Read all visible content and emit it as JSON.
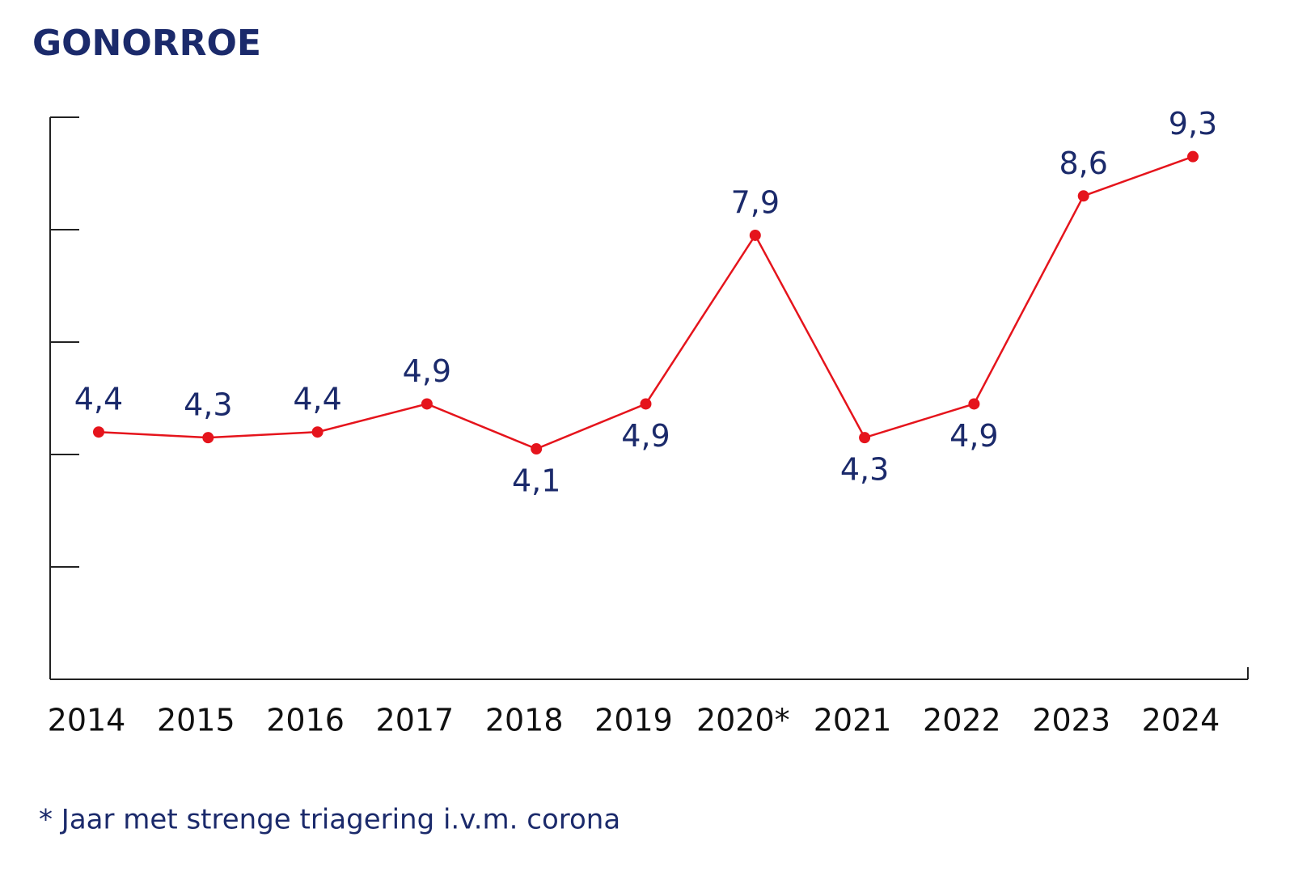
{
  "chart_data": {
    "type": "line",
    "title": "GONORROE",
    "categories": [
      "2014",
      "2015",
      "2016",
      "2017",
      "2018",
      "2019",
      "2020*",
      "2021",
      "2022",
      "2023",
      "2024"
    ],
    "series": [
      {
        "color": "#e5141c",
        "values": [
          4.4,
          4.3,
          4.4,
          4.9,
          4.1,
          4.9,
          7.9,
          4.3,
          4.9,
          8.6,
          9.3
        ],
        "value_labels": [
          "4,4",
          "4,3",
          "4,4",
          "4,9",
          "4,1",
          "4,9",
          "7,9",
          "4,3",
          "4,9",
          "8,6",
          "9,3"
        ]
      }
    ],
    "ylim": [
      0,
      10
    ],
    "yticks": [
      0,
      2,
      4,
      6,
      8,
      10
    ],
    "footnote": "* Jaar met strenge triagering i.v.m. corona"
  }
}
